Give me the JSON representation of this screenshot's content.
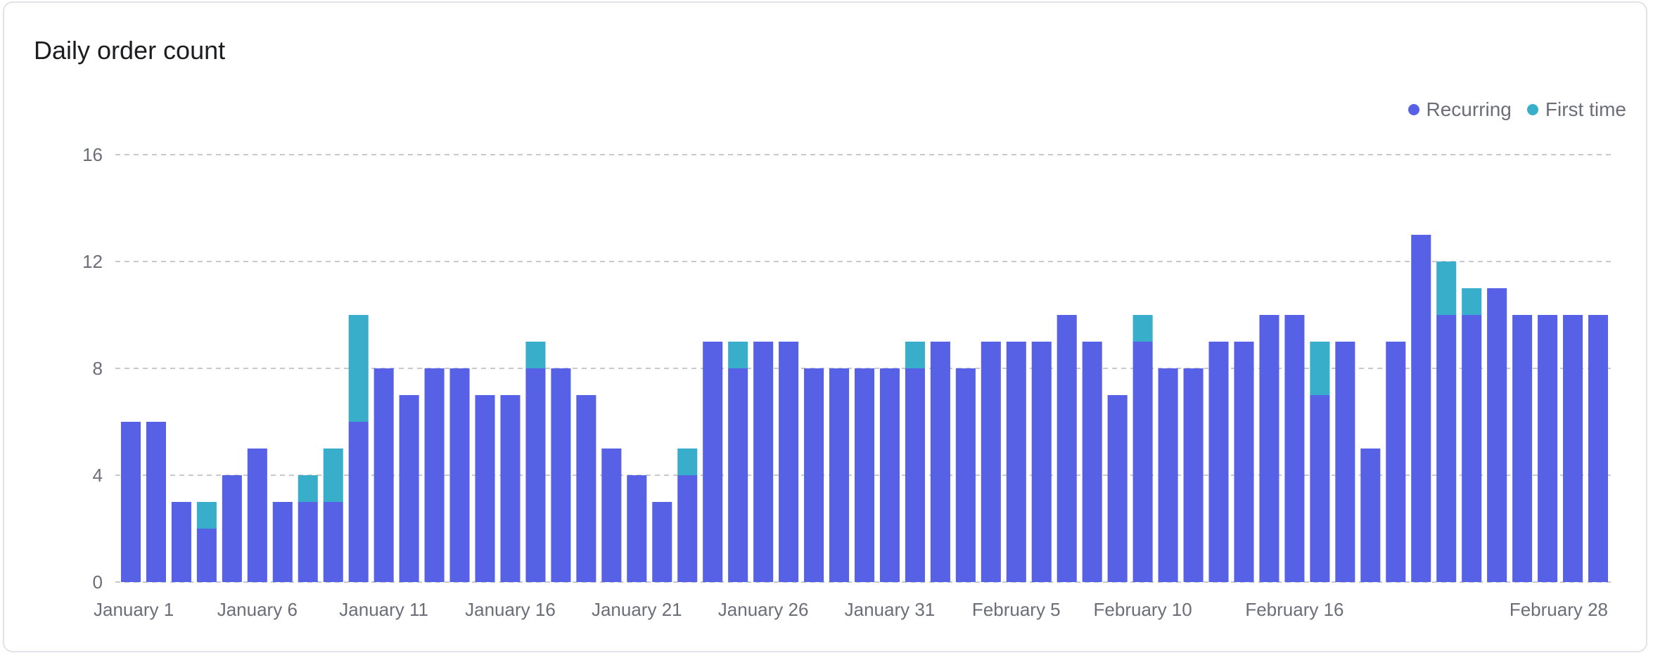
{
  "card": {
    "title": "Daily order count"
  },
  "colors": {
    "recurring": "#5661e6",
    "first_time": "#38aecb",
    "grid": "#c7c9ce",
    "tick_text": "#6b6e78"
  },
  "chart_data": {
    "type": "bar",
    "stacked": true,
    "title": "",
    "xlabel": "",
    "ylabel": "",
    "ylim": [
      0,
      16
    ],
    "yticks": [
      0,
      4,
      8,
      12,
      16
    ],
    "grid": true,
    "legend_position": "top-right",
    "categories": [
      "January 1",
      "January 2",
      "January 3",
      "January 4",
      "January 5",
      "January 6",
      "January 7",
      "January 8",
      "January 9",
      "January 10",
      "January 11",
      "January 12",
      "January 13",
      "January 14",
      "January 15",
      "January 16",
      "January 17",
      "January 18",
      "January 19",
      "January 20",
      "January 21",
      "January 22",
      "January 23",
      "January 24",
      "January 25",
      "January 26",
      "January 27",
      "January 28",
      "January 29",
      "January 30",
      "January 31",
      "February 1",
      "February 2",
      "February 3",
      "February 4",
      "February 5",
      "February 6",
      "February 7",
      "February 8",
      "February 9",
      "February 10",
      "February 11",
      "February 12",
      "February 13",
      "February 14",
      "February 15",
      "February 16",
      "February 17",
      "February 18",
      "February 19",
      "February 20",
      "February 21",
      "February 22",
      "February 23",
      "February 24",
      "February 25",
      "February 26",
      "February 27",
      "February 28"
    ],
    "xtick_labels": [
      {
        "index": 0,
        "label": "January 1"
      },
      {
        "index": 5,
        "label": "January 6"
      },
      {
        "index": 10,
        "label": "January 11"
      },
      {
        "index": 15,
        "label": "January 16"
      },
      {
        "index": 20,
        "label": "January 21"
      },
      {
        "index": 25,
        "label": "January 26"
      },
      {
        "index": 30,
        "label": "January 31"
      },
      {
        "index": 35,
        "label": "February 5"
      },
      {
        "index": 40,
        "label": "February 10"
      },
      {
        "index": 46,
        "label": "February 16"
      },
      {
        "index": 58,
        "label": "February 28"
      }
    ],
    "series": [
      {
        "name": "Recurring",
        "values": [
          6,
          6,
          3,
          2,
          4,
          5,
          3,
          3,
          3,
          6,
          8,
          7,
          8,
          8,
          7,
          7,
          8,
          8,
          7,
          5,
          4,
          3,
          4,
          9,
          8,
          9,
          9,
          8,
          8,
          8,
          8,
          8,
          9,
          8,
          9,
          9,
          9,
          10,
          9,
          7,
          9,
          8,
          8,
          9,
          9,
          10,
          10,
          7,
          9,
          5,
          9,
          13,
          10,
          10,
          11,
          10,
          10,
          10,
          10
        ]
      },
      {
        "name": "First time",
        "values": [
          0,
          0,
          0,
          1,
          0,
          0,
          0,
          1,
          2,
          4,
          0,
          0,
          0,
          0,
          0,
          0,
          1,
          0,
          0,
          0,
          0,
          0,
          1,
          0,
          1,
          0,
          0,
          0,
          0,
          0,
          0,
          1,
          0,
          0,
          0,
          0,
          0,
          0,
          0,
          0,
          1,
          0,
          0,
          0,
          0,
          0,
          0,
          2,
          0,
          0,
          0,
          0,
          2,
          1,
          0,
          0,
          0,
          0,
          0
        ]
      }
    ]
  }
}
